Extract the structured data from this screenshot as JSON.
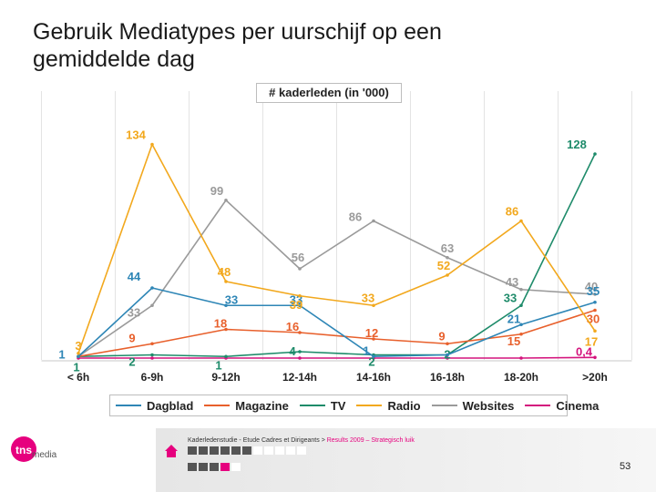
{
  "page": {
    "title_line1": "Gebruik Mediatypes per uurschijf op een",
    "title_line2": "gemiddelde dag",
    "footer_text_prefix": "Kaderledenstudie - Etude Cadres et Dirigeants > ",
    "footer_text_link": "Results 2009 – Strategisch luik",
    "logo_text": "media",
    "page_number": "53"
  },
  "colors": {
    "Dagblad": "#2e86b6",
    "Magazine": "#e8602c",
    "TV": "#1e8b6a",
    "Radio": "#f2a81d",
    "Websites": "#9a9a9a",
    "Cinema": "#d4147d"
  },
  "chart_data": {
    "type": "line",
    "title": "# kaderleden (in '000)",
    "categories": [
      "< 6h",
      "6-9h",
      "9-12h",
      "12-14h",
      "14-16h",
      "16-18h",
      "18-20h",
      ">20h"
    ],
    "ylim": [
      0,
      140
    ],
    "legend_position": "bottom",
    "series": [
      {
        "name": "Dagblad",
        "values": [
          1,
          44,
          33,
          33,
          1,
          2,
          21,
          35
        ],
        "labels": [
          "1",
          "44",
          "33",
          "33",
          "1",
          "",
          "21",
          "35"
        ]
      },
      {
        "name": "Magazine",
        "values": [
          1,
          9,
          18,
          16,
          12,
          9,
          15,
          30
        ],
        "labels": [
          "",
          "9",
          "18",
          "16",
          "12",
          "9",
          "15",
          "30"
        ]
      },
      {
        "name": "TV",
        "values": [
          1,
          2,
          1,
          4,
          2,
          2,
          33,
          128
        ],
        "labels": [
          "1",
          "2",
          "1",
          "4",
          "2",
          "2",
          "33",
          "128"
        ]
      },
      {
        "name": "Radio",
        "values": [
          3,
          134,
          48,
          39,
          33,
          52,
          86,
          17
        ],
        "labels": [
          "3",
          "134",
          "48",
          "39",
          "33",
          "52",
          "86",
          "17"
        ]
      },
      {
        "name": "Websites",
        "values": [
          1,
          33,
          99,
          56,
          86,
          63,
          43,
          40
        ],
        "labels": [
          "",
          "33",
          "99",
          "56",
          "86",
          "63",
          "43",
          "40"
        ]
      },
      {
        "name": "Cinema",
        "values": [
          0,
          0,
          0,
          0,
          0,
          0,
          0,
          0.4
        ],
        "labels": [
          "",
          "",
          "",
          "",
          "",
          "",
          "",
          "0,4"
        ]
      }
    ]
  }
}
